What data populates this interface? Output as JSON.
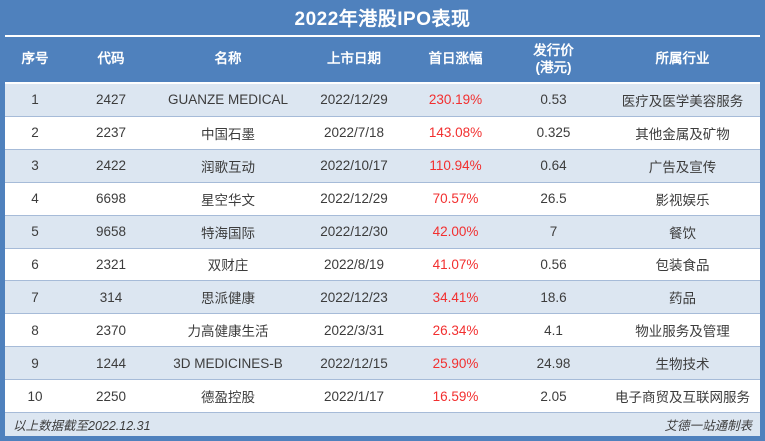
{
  "chart_data": {
    "type": "table",
    "title": "2022年港股IPO表现",
    "columns": [
      {
        "id": "seq",
        "label": "序号"
      },
      {
        "id": "code",
        "label": "代码"
      },
      {
        "id": "name",
        "label": "名称"
      },
      {
        "id": "date",
        "label": "上市日期"
      },
      {
        "id": "gain",
        "label": "首日涨幅"
      },
      {
        "id": "price",
        "label": "发行价",
        "sublabel": "(港元)"
      },
      {
        "id": "industry",
        "label": "所属行业"
      }
    ],
    "rows": [
      {
        "seq": "1",
        "code": "2427",
        "name": "GUANZE MEDICAL",
        "date": "2022/12/29",
        "gain": "230.19%",
        "price": "0.53",
        "industry": "医疗及医学美容服务"
      },
      {
        "seq": "2",
        "code": "2237",
        "name": "中国石墨",
        "date": "2022/7/18",
        "gain": "143.08%",
        "price": "0.325",
        "industry": "其他金属及矿物"
      },
      {
        "seq": "3",
        "code": "2422",
        "name": "润歌互动",
        "date": "2022/10/17",
        "gain": "110.94%",
        "price": "0.64",
        "industry": "广告及宣传"
      },
      {
        "seq": "4",
        "code": "6698",
        "name": "星空华文",
        "date": "2022/12/29",
        "gain": "70.57%",
        "price": "26.5",
        "industry": "影视娱乐"
      },
      {
        "seq": "5",
        "code": "9658",
        "name": "特海国际",
        "date": "2022/12/30",
        "gain": "42.00%",
        "price": "7",
        "industry": "餐饮"
      },
      {
        "seq": "6",
        "code": "2321",
        "name": "双财庄",
        "date": "2022/8/19",
        "gain": "41.07%",
        "price": "0.56",
        "industry": "包装食品"
      },
      {
        "seq": "7",
        "code": "314",
        "name": "思派健康",
        "date": "2022/12/23",
        "gain": "34.41%",
        "price": "18.6",
        "industry": "药品"
      },
      {
        "seq": "8",
        "code": "2370",
        "name": "力高健康生活",
        "date": "2022/3/31",
        "gain": "26.34%",
        "price": "4.1",
        "industry": "物业服务及管理"
      },
      {
        "seq": "9",
        "code": "1244",
        "name": "3D MEDICINES-B",
        "date": "2022/12/15",
        "gain": "25.90%",
        "price": "24.98",
        "industry": "生物技术"
      },
      {
        "seq": "10",
        "code": "2250",
        "name": "德盈控股",
        "date": "2022/1/17",
        "gain": "16.59%",
        "price": "2.05",
        "industry": "电子商贸及互联网服务"
      }
    ]
  },
  "footer": {
    "left": "以上数据截至2022.12.31",
    "right": "艾德一站通制表"
  },
  "colors": {
    "header_bg": "#4f81bd",
    "row_alt_bg": "#dce6f1",
    "row_border": "#a6bbd8",
    "gain_color": "#f22f2f",
    "text_color": "#3c3c3c"
  }
}
